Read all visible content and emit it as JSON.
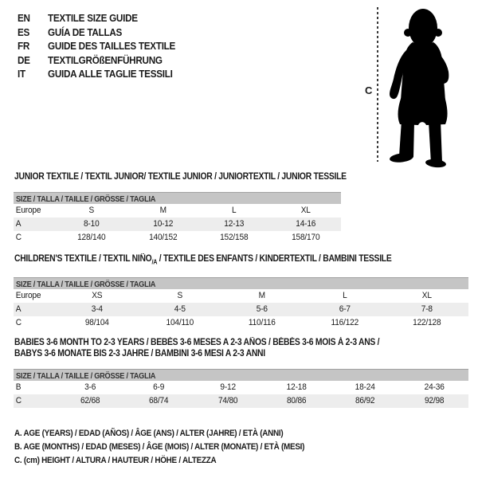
{
  "colors": {
    "bar": "#c5c5c5",
    "shade": "#ededed",
    "text": "#1a1a1a",
    "bar_text": "#333333"
  },
  "header": {
    "langs": [
      {
        "code": "EN",
        "label": "TEXTILE SIZE GUIDE"
      },
      {
        "code": "ES",
        "label": "GUÍA DE TALLAS"
      },
      {
        "code": "FR",
        "label": "GUIDE DES TAILLES TEXTILE"
      },
      {
        "code": "DE",
        "label": "TEXTILGRÖßENFÜHRUNG"
      },
      {
        "code": "IT",
        "label": "GUIDA ALLE TAGLIE TESSILI"
      }
    ]
  },
  "figure": {
    "measure_label": "C"
  },
  "tables": [
    {
      "title": "JUNIOR TEXTILE / TEXTIL JUNIOR/ TEXTILE JUNIOR / JUNIORTEXTIL / JUNIOR TESSILE",
      "size_header": "SIZE / TALLA / TAILLE / GRÖSSE / TAGLIA",
      "rows": [
        {
          "label": "Europe",
          "shaded": false,
          "values": [
            "S",
            "M",
            "L",
            "XL"
          ]
        },
        {
          "label": "A",
          "shaded": true,
          "values": [
            "8-10",
            "10-12",
            "12-13",
            "14-16"
          ]
        },
        {
          "label": "C",
          "shaded": false,
          "values": [
            "128/140",
            "140/152",
            "152/158",
            "158/170"
          ]
        }
      ]
    },
    {
      "title_pre": "CHILDREN'S TEXTILE / TEXTIL NIÑO",
      "title_sub": "/A",
      "title_post": " / TEXTILE DES ENFANTS / KINDERTEXTIL / BAMBINI TESSILE",
      "size_header": "SIZE / TALLA / TAILLE / GRÖSSE / TAGLIA",
      "rows": [
        {
          "label": "Europe",
          "shaded": false,
          "values": [
            "XS",
            "S",
            "M",
            "L",
            "XL"
          ]
        },
        {
          "label": "A",
          "shaded": true,
          "values": [
            "3-4",
            "4-5",
            "5-6",
            "6-7",
            "7-8"
          ]
        },
        {
          "label": "C",
          "shaded": false,
          "values": [
            "98/104",
            "104/110",
            "110/116",
            "116/122",
            "122/128"
          ]
        }
      ]
    },
    {
      "title_line1": "BABIES 3-6 MONTH TO 2-3 YEARS / BEBÉS 3-6 MESES A 2-3 AÑOS / BÉBÉS 3-6 MOIS À 2-3 ANS /",
      "title_line2": "BABYS 3-6 MONATE BIS 2-3 JAHRE / BAMBINI 3-6 MESI A 2-3 ANNI",
      "size_header": "SIZE / TALLA / TAILLE / GRÖSSE / TAGLIA",
      "rows": [
        {
          "label": "B",
          "shaded": false,
          "values": [
            "3-6",
            "6-9",
            "9-12",
            "12-18",
            "18-24",
            "24-36"
          ]
        },
        {
          "label": "C",
          "shaded": true,
          "values": [
            "62/68",
            "68/74",
            "74/80",
            "80/86",
            "86/92",
            "92/98"
          ]
        }
      ]
    }
  ],
  "footnotes": [
    "A. AGE (YEARS) / EDAD (AÑOS) / ÂGE (ANS) / ALTER (JAHRE) / ETÀ (ANNI)",
    "B. AGE (MONTHS) / EDAD (MESES) / ÂGE (MOIS) / ALTER (MONATE) / ETÀ (MESI)",
    "C. (cm) HEIGHT / ALTURA / HAUTEUR / HÖHE / ALTEZZA"
  ]
}
